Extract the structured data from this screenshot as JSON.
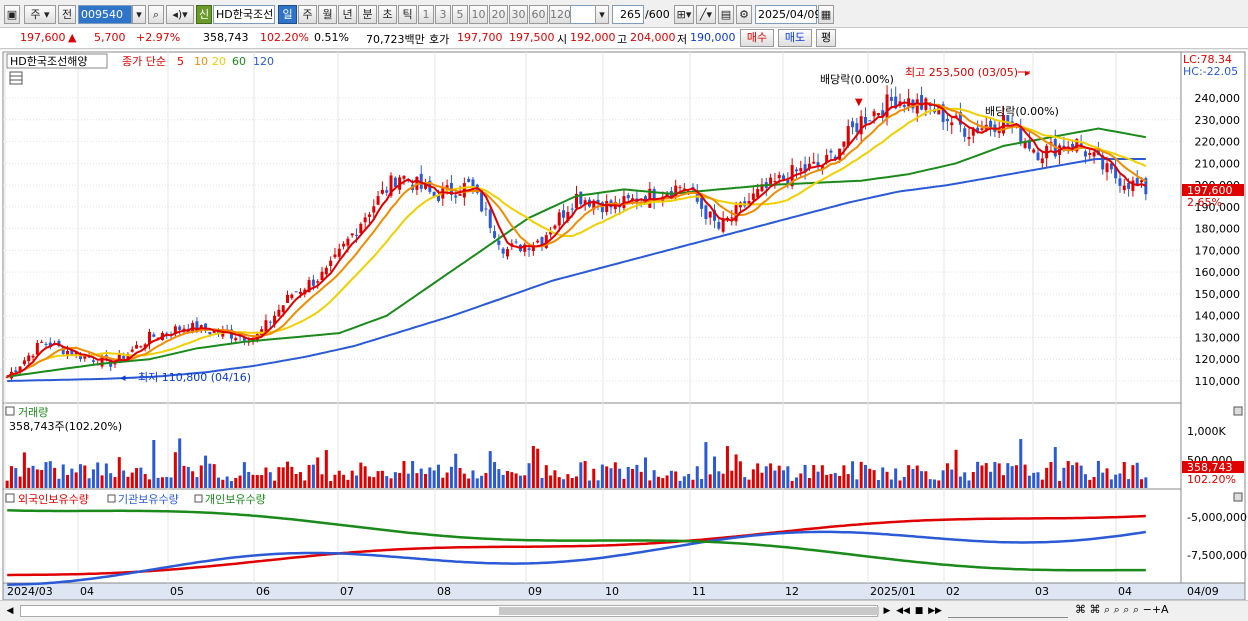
{
  "toolbar": {
    "market_tab": "주",
    "market_tab2": "전",
    "stock_code": "009540",
    "badge_new": "신",
    "stock_name": "HD한국조선",
    "periods": [
      "일",
      "주",
      "월",
      "년",
      "분",
      "초",
      "틱"
    ],
    "active_period": "일",
    "intervals": [
      "1",
      "3",
      "5",
      "10",
      "20",
      "30",
      "60",
      "120"
    ],
    "count_value": "265",
    "count_total": "/600",
    "date": "2025/04/09"
  },
  "quote": {
    "price": "197,600",
    "change": "5,700",
    "change_pct": "+2.97%",
    "volume": "358,743",
    "volume_ratio": "102.20%",
    "turnover": "0.51%",
    "amount": "70,723백만",
    "hoga_label": "호가",
    "ask": "197,700",
    "bid": "197,500",
    "open_label": "시",
    "open": "192,000",
    "high_label": "고",
    "high": "204,000",
    "low_label": "저",
    "low": "190,000",
    "buy_btn": "매수",
    "sell_btn": "매도",
    "eval_btn": "평"
  },
  "price_panel": {
    "title": "HD한국조선해양",
    "legend_prefix": "종가 단순",
    "ma": [
      {
        "label": "5",
        "color": "#e00000"
      },
      {
        "label": "10",
        "color": "#f08c00"
      },
      {
        "label": "20",
        "color": "#f0d000"
      },
      {
        "label": "60",
        "color": "#1a8a1a"
      },
      {
        "label": "120",
        "color": "#2a5ad6"
      }
    ],
    "lc": "LC:78.34",
    "hc": "HC:-22.05",
    "yticks": [
      "240,000",
      "230,000",
      "220,000",
      "210,000",
      "200,000",
      "190,000",
      "180,000",
      "170,000",
      "160,000",
      "150,000",
      "140,000",
      "130,000",
      "120,000",
      "110,000"
    ],
    "current_price_tag": "197,600",
    "current_pct_tag": "2.65%",
    "annot_high": "최고 253,500 (03/05)",
    "annot_low": "최저 110,800 (04/16)",
    "annot_div1": "배당락(0.00%)",
    "annot_div2": "배당락(0.00%)"
  },
  "volume_panel": {
    "title": "거래량",
    "value": "358,743주(102.20%)",
    "yticks": [
      "1,000K",
      "500,000"
    ],
    "tag": "358,743",
    "tag_pct": "102.20%"
  },
  "holding_panel": {
    "legends": [
      "외국인보유수량",
      "기관보유수량",
      "개인보유수량"
    ],
    "colors": [
      "#e00000",
      "#2a5ad6",
      "#1a8a1a"
    ],
    "yticks": [
      "-5,000,000",
      "-7,500,000"
    ]
  },
  "xaxis": [
    "2024/03",
    "04",
    "05",
    "06",
    "07",
    "08",
    "09",
    "10",
    "11",
    "12",
    "2025/01",
    "02",
    "03",
    "04"
  ],
  "xaxis_right": "04/09",
  "chart_data": {
    "type": "line",
    "series": [
      {
        "name": "종가",
        "values": [
          112000,
          128000,
          122000,
          118000,
          130000,
          135000,
          132000,
          130000,
          150000,
          160000,
          185000,
          205000,
          195000,
          200000,
          170000,
          175000,
          195000,
          190000,
          195000,
          200000,
          180000,
          195000,
          205000,
          210000,
          230000,
          240000,
          235000,
          225000,
          230000,
          215000,
          220000,
          205000,
          197600
        ]
      },
      {
        "name": "60",
        "values": [
          112000,
          115000,
          118000,
          120000,
          125000,
          128000,
          130000,
          132000,
          140000,
          155000,
          170000,
          185000,
          195000,
          198000,
          196000,
          198000,
          200000,
          201000,
          202000,
          205000,
          210000,
          218000,
          222000,
          226000,
          222000
        ]
      },
      {
        "name": "120",
        "values": [
          110000,
          110500,
          111000,
          112000,
          114000,
          117000,
          121000,
          126000,
          133000,
          140000,
          148000,
          156000,
          162000,
          168000,
          174000,
          180000,
          186000,
          192000,
          197000,
          200000,
          204000,
          208000,
          212000,
          212000
        ]
      }
    ],
    "ylim": [
      105000,
      258000
    ]
  }
}
